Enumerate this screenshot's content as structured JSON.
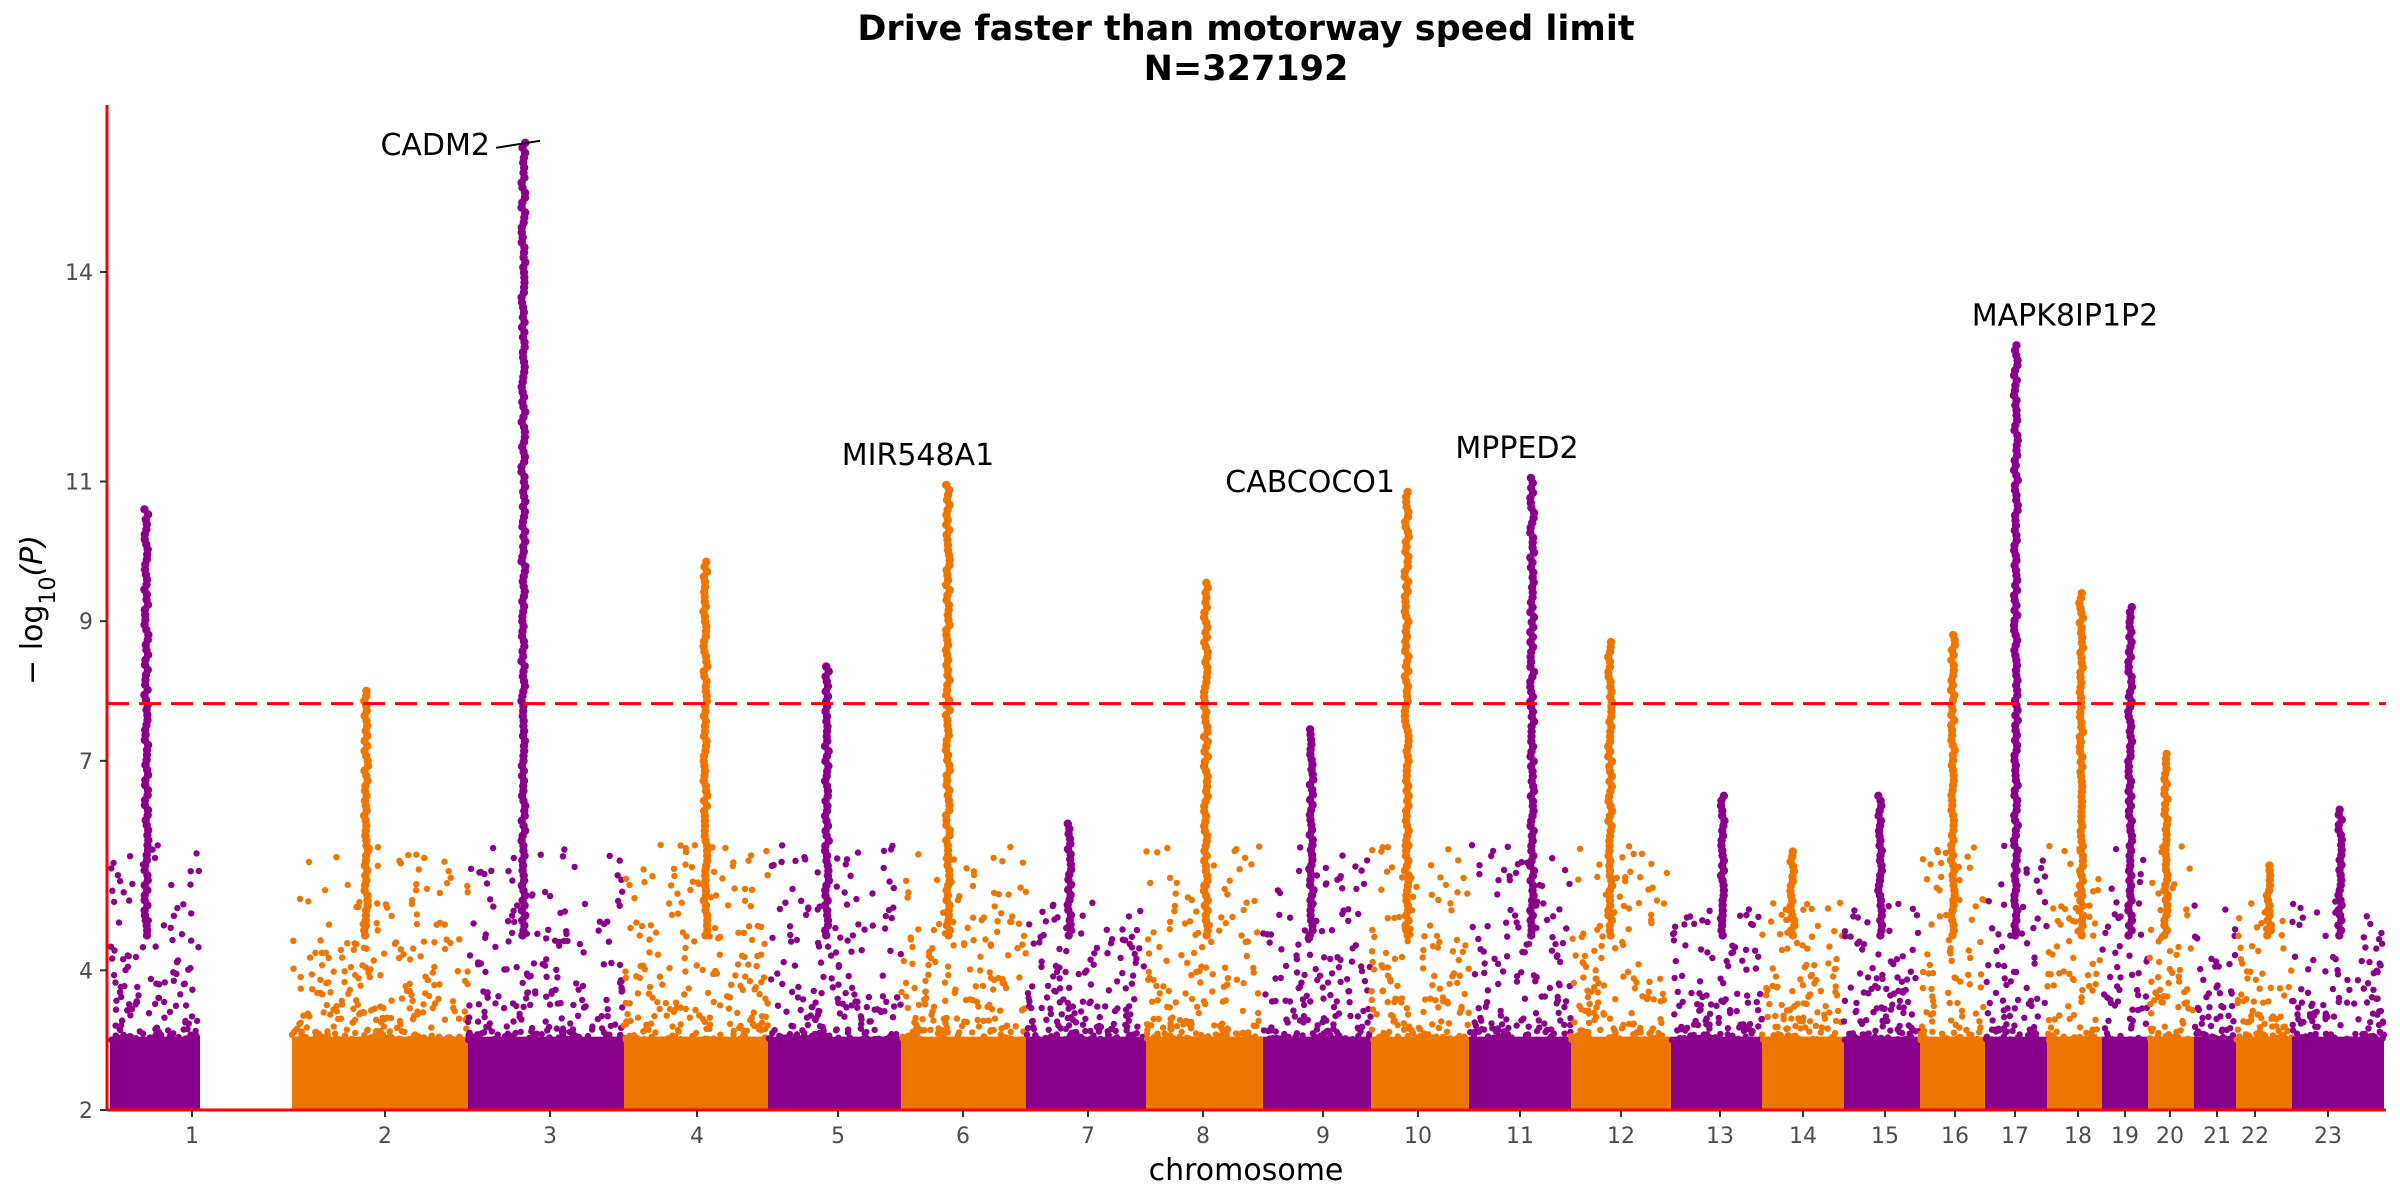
{
  "colors": {
    "odd_chromosome": "#8B008B",
    "even_chromosome": "#EE7600",
    "axis_line": "#FF0000",
    "threshold_line": "#FF0000"
  },
  "chart_data": {
    "type": "scatter",
    "subtype": "manhattan",
    "title": "Drive faster than motorway speed limit",
    "subtitle": "N=327192",
    "xlabel": "chromosome",
    "ylabel": "− log10(P)",
    "ylabel_parts": {
      "prefix": "− log",
      "sub": "10",
      "suffix": "(P)"
    },
    "ylim": [
      2,
      16
    ],
    "y_ticks": [
      2,
      4,
      7,
      9,
      11,
      14
    ],
    "significance_threshold": 7.82,
    "chromosomes": [
      {
        "label": "1",
        "max": 10.6
      },
      {
        "label": "2",
        "max": 8.0
      },
      {
        "label": "3",
        "max": 15.85
      },
      {
        "label": "4",
        "max": 9.85
      },
      {
        "label": "5",
        "max": 8.35
      },
      {
        "label": "6",
        "max": 10.95
      },
      {
        "label": "7",
        "max": 6.1
      },
      {
        "label": "8",
        "max": 9.55
      },
      {
        "label": "9",
        "max": 7.45
      },
      {
        "label": "10",
        "max": 10.85
      },
      {
        "label": "11",
        "max": 11.05
      },
      {
        "label": "12",
        "max": 8.7
      },
      {
        "label": "13",
        "max": 6.5
      },
      {
        "label": "14",
        "max": 5.7
      },
      {
        "label": "15",
        "max": 6.5
      },
      {
        "label": "16",
        "max": 8.8
      },
      {
        "label": "17",
        "max": 12.95
      },
      {
        "label": "18",
        "max": 9.4
      },
      {
        "label": "19",
        "max": 9.2
      },
      {
        "label": "20",
        "max": 7.1
      },
      {
        "label": "21",
        "max": 5.0
      },
      {
        "label": "22",
        "max": 5.5
      },
      {
        "label": "23",
        "max": 6.3
      }
    ],
    "annotations": [
      {
        "label": "CADM2",
        "chromosome": "3",
        "y": 15.85
      },
      {
        "label": "MIR548A1",
        "chromosome": "6",
        "y": 10.95
      },
      {
        "label": "CABCOCO1",
        "chromosome": "10",
        "y": 10.85
      },
      {
        "label": "MPPED2",
        "chromosome": "11",
        "y": 11.05
      },
      {
        "label": "MAPK8IP1P2",
        "chromosome": "17",
        "y": 12.95
      }
    ]
  }
}
